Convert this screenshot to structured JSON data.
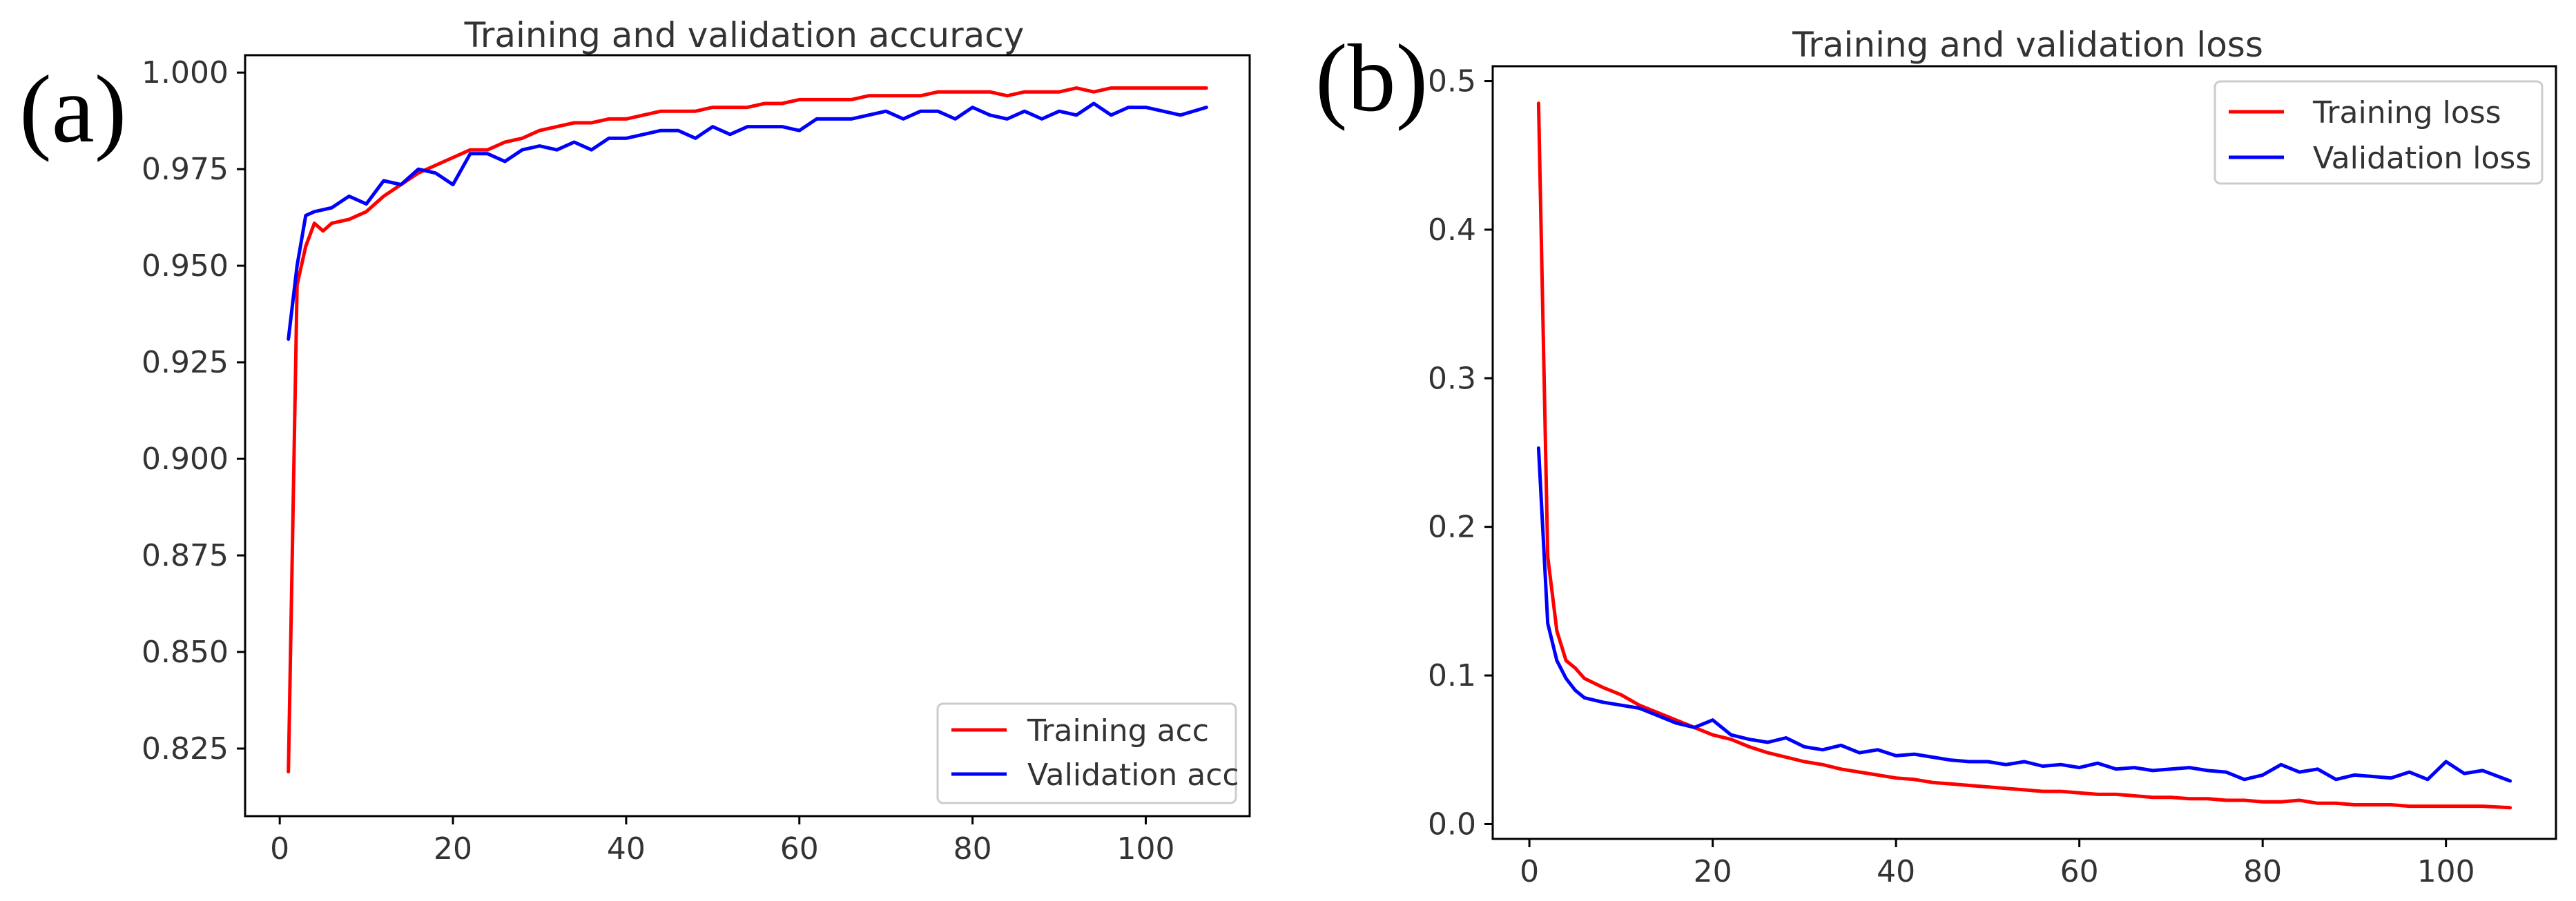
{
  "panels": [
    {
      "label": "(a)"
    },
    {
      "label": "(b)"
    }
  ],
  "colors": {
    "training": "#ff0000",
    "validation": "#0000ff",
    "axis": "#000000",
    "text": "#333333"
  },
  "chart_data": [
    {
      "type": "line",
      "title": "Training and validation accuracy",
      "xlabel": "",
      "ylabel": "",
      "xlim": [
        -4,
        112
      ],
      "ylim": [
        0.8075,
        1.0045
      ],
      "xticks": [
        0,
        20,
        40,
        60,
        80,
        100
      ],
      "yticks": [
        0.825,
        0.85,
        0.875,
        0.9,
        0.925,
        0.95,
        0.975,
        1.0
      ],
      "ytick_labels": [
        "0.825",
        "0.850",
        "0.875",
        "0.900",
        "0.925",
        "0.950",
        "0.975",
        "1.000"
      ],
      "grid": false,
      "legend_position": "lower-right",
      "series": [
        {
          "name": "Training acc",
          "color": "#ff0000",
          "x": [
            1,
            2,
            3,
            4,
            5,
            6,
            8,
            10,
            12,
            14,
            16,
            18,
            20,
            22,
            24,
            26,
            28,
            30,
            32,
            34,
            36,
            38,
            40,
            42,
            44,
            46,
            48,
            50,
            52,
            54,
            56,
            58,
            60,
            62,
            64,
            66,
            68,
            70,
            72,
            74,
            76,
            78,
            80,
            82,
            84,
            86,
            88,
            90,
            92,
            94,
            96,
            98,
            100,
            102,
            104,
            107
          ],
          "y": [
            0.819,
            0.945,
            0.955,
            0.961,
            0.959,
            0.961,
            0.962,
            0.964,
            0.968,
            0.971,
            0.974,
            0.976,
            0.978,
            0.98,
            0.98,
            0.982,
            0.983,
            0.985,
            0.986,
            0.987,
            0.987,
            0.988,
            0.988,
            0.989,
            0.99,
            0.99,
            0.99,
            0.991,
            0.991,
            0.991,
            0.992,
            0.992,
            0.993,
            0.993,
            0.993,
            0.993,
            0.994,
            0.994,
            0.994,
            0.994,
            0.995,
            0.995,
            0.995,
            0.995,
            0.994,
            0.995,
            0.995,
            0.995,
            0.996,
            0.995,
            0.996,
            0.996,
            0.996,
            0.996,
            0.996,
            0.996
          ]
        },
        {
          "name": "Validation acc",
          "color": "#0000ff",
          "x": [
            1,
            2,
            3,
            4,
            6,
            8,
            10,
            12,
            14,
            16,
            18,
            20,
            22,
            24,
            26,
            28,
            30,
            32,
            34,
            36,
            38,
            40,
            42,
            44,
            46,
            48,
            50,
            52,
            54,
            56,
            58,
            60,
            62,
            64,
            66,
            68,
            70,
            72,
            74,
            76,
            78,
            80,
            82,
            84,
            86,
            88,
            90,
            92,
            94,
            96,
            98,
            100,
            102,
            104,
            107
          ],
          "y": [
            0.931,
            0.95,
            0.963,
            0.964,
            0.965,
            0.968,
            0.966,
            0.972,
            0.971,
            0.975,
            0.974,
            0.971,
            0.979,
            0.979,
            0.977,
            0.98,
            0.981,
            0.98,
            0.982,
            0.98,
            0.983,
            0.983,
            0.984,
            0.985,
            0.985,
            0.983,
            0.986,
            0.984,
            0.986,
            0.986,
            0.986,
            0.985,
            0.988,
            0.988,
            0.988,
            0.989,
            0.99,
            0.988,
            0.99,
            0.99,
            0.988,
            0.991,
            0.989,
            0.988,
            0.99,
            0.988,
            0.99,
            0.989,
            0.992,
            0.989,
            0.991,
            0.991,
            0.99,
            0.989,
            0.991
          ]
        }
      ]
    },
    {
      "type": "line",
      "title": "Training and validation loss",
      "xlabel": "",
      "ylabel": "",
      "xlim": [
        -4,
        112
      ],
      "ylim": [
        -0.01,
        0.51
      ],
      "xticks": [
        0,
        20,
        40,
        60,
        80,
        100
      ],
      "yticks": [
        0.0,
        0.1,
        0.2,
        0.3,
        0.4,
        0.5
      ],
      "ytick_labels": [
        "0.0",
        "0.1",
        "0.2",
        "0.3",
        "0.4",
        "0.5"
      ],
      "grid": false,
      "legend_position": "upper-right",
      "series": [
        {
          "name": "Training loss",
          "color": "#ff0000",
          "x": [
            1,
            2,
            3,
            4,
            5,
            6,
            8,
            10,
            12,
            14,
            16,
            18,
            20,
            22,
            24,
            26,
            28,
            30,
            32,
            34,
            36,
            38,
            40,
            42,
            44,
            46,
            48,
            50,
            52,
            54,
            56,
            58,
            60,
            62,
            64,
            66,
            68,
            70,
            72,
            74,
            76,
            78,
            80,
            82,
            84,
            86,
            88,
            90,
            92,
            94,
            96,
            98,
            100,
            102,
            104,
            107
          ],
          "y": [
            0.485,
            0.18,
            0.13,
            0.11,
            0.105,
            0.098,
            0.092,
            0.087,
            0.08,
            0.075,
            0.07,
            0.065,
            0.06,
            0.057,
            0.052,
            0.048,
            0.045,
            0.042,
            0.04,
            0.037,
            0.035,
            0.033,
            0.031,
            0.03,
            0.028,
            0.027,
            0.026,
            0.025,
            0.024,
            0.023,
            0.022,
            0.022,
            0.021,
            0.02,
            0.02,
            0.019,
            0.018,
            0.018,
            0.017,
            0.017,
            0.016,
            0.016,
            0.015,
            0.015,
            0.016,
            0.014,
            0.014,
            0.013,
            0.013,
            0.013,
            0.012,
            0.012,
            0.012,
            0.012,
            0.012,
            0.011
          ]
        },
        {
          "name": "Validation loss",
          "color": "#0000ff",
          "x": [
            1,
            2,
            3,
            4,
            5,
            6,
            8,
            10,
            12,
            14,
            16,
            18,
            20,
            22,
            24,
            26,
            28,
            30,
            32,
            34,
            36,
            38,
            40,
            42,
            44,
            46,
            48,
            50,
            52,
            54,
            56,
            58,
            60,
            62,
            64,
            66,
            68,
            70,
            72,
            74,
            76,
            78,
            80,
            82,
            84,
            86,
            88,
            90,
            92,
            94,
            96,
            98,
            100,
            102,
            104,
            107
          ],
          "y": [
            0.253,
            0.135,
            0.11,
            0.098,
            0.09,
            0.085,
            0.082,
            0.08,
            0.078,
            0.073,
            0.068,
            0.065,
            0.07,
            0.06,
            0.057,
            0.055,
            0.058,
            0.052,
            0.05,
            0.053,
            0.048,
            0.05,
            0.046,
            0.047,
            0.045,
            0.043,
            0.042,
            0.042,
            0.04,
            0.042,
            0.039,
            0.04,
            0.038,
            0.041,
            0.037,
            0.038,
            0.036,
            0.037,
            0.038,
            0.036,
            0.035,
            0.03,
            0.033,
            0.04,
            0.035,
            0.037,
            0.03,
            0.033,
            0.032,
            0.031,
            0.035,
            0.03,
            0.042,
            0.034,
            0.036,
            0.029
          ]
        }
      ]
    }
  ]
}
